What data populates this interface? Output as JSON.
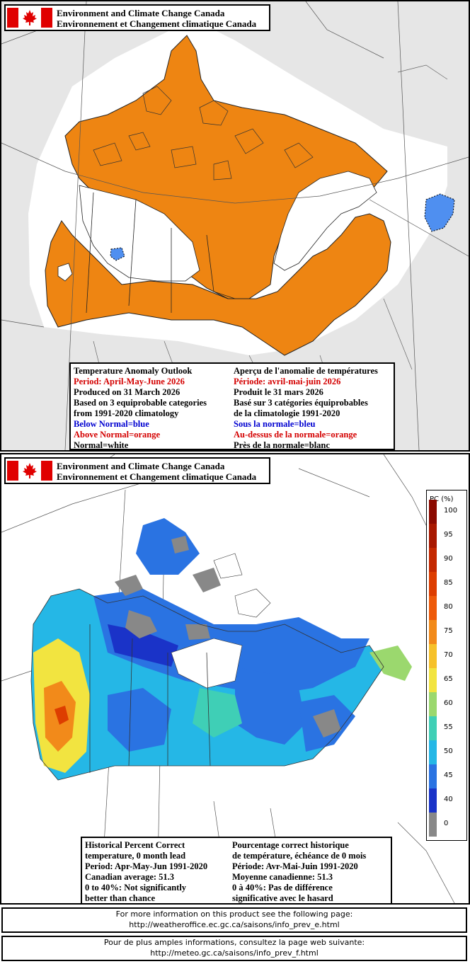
{
  "header": {
    "agency_en": "Environment and Climate Change Canada",
    "agency_fr": "Environnement et Changement climatique Canada"
  },
  "outlook_map": {
    "legend_en": [
      {
        "text": "Temperature Anomaly Outlook",
        "color": "#000000"
      },
      {
        "text": "Period: April-May-June 2026",
        "color": "#d40000"
      },
      {
        "text": "Produced on 31 March 2026",
        "color": "#000000"
      },
      {
        "text": "Based on 3 equiprobable categories",
        "color": "#000000"
      },
      {
        "text": "from 1991-2020 climatology",
        "color": "#000000"
      },
      {
        "text": "Below Normal=blue",
        "color": "#0000d0"
      },
      {
        "text": "Above Normal=orange",
        "color": "#d40000"
      },
      {
        "text": "Normal=white",
        "color": "#000000"
      }
    ],
    "legend_fr": [
      {
        "text": "Aperçu de l'anomalie de températures",
        "color": "#000000"
      },
      {
        "text": "Période: avril-mai-juin 2026",
        "color": "#d40000"
      },
      {
        "text": "Produit le 31 mars 2026",
        "color": "#000000"
      },
      {
        "text": "Basé sur 3 catégories équiprobables",
        "color": "#000000"
      },
      {
        "text": "de la climatologie 1991-2020",
        "color": "#000000"
      },
      {
        "text": "Sous la normale=bleu",
        "color": "#0000d0"
      },
      {
        "text": "Au-dessus de la normale=orange",
        "color": "#d40000"
      },
      {
        "text": "Près de la normale=blanc",
        "color": "#000000"
      }
    ],
    "colors": {
      "above": "#ee8512",
      "below": "#4f8ff0",
      "normal": "#ffffff",
      "outside": "#e8e8e8"
    }
  },
  "skill_map": {
    "legend_en": [
      "Historical Percent Correct",
      "temperature, 0 month lead",
      "Period: Apr-May-Jun 1991-2020",
      "Canadian average: 51.3",
      "0 to 40%: Not significantly",
      "better than chance"
    ],
    "legend_fr": [
      "Pourcentage correct historique",
      "de température, échéance de 0 mois",
      "Période: Avr-Mai-Juin 1991-2020",
      "Moyenne canadienne: 51.3",
      "0 à 40%: Pas de différence",
      "significative avec le hasard"
    ],
    "scale_title": "PC (%)",
    "scale": [
      {
        "label": "100",
        "color": "#8b0a00"
      },
      {
        "label": "95",
        "color": "#a81800"
      },
      {
        "label": "90",
        "color": "#c42800"
      },
      {
        "label": "85",
        "color": "#dd3d00"
      },
      {
        "label": "80",
        "color": "#ee5a0a"
      },
      {
        "label": "75",
        "color": "#f28a1a"
      },
      {
        "label": "70",
        "color": "#f6c12a"
      },
      {
        "label": "65",
        "color": "#f2e440"
      },
      {
        "label": "60",
        "color": "#9bd86e"
      },
      {
        "label": "55",
        "color": "#3fcfb6"
      },
      {
        "label": "50",
        "color": "#25b7e6"
      },
      {
        "label": "45",
        "color": "#2a73e2"
      },
      {
        "label": "40",
        "color": "#1a33c8"
      },
      {
        "label": "0",
        "color": "#888888"
      }
    ]
  },
  "footer": {
    "en_line1": "For more information on this product see the following page:",
    "en_line2": "http://weatheroffice.ec.gc.ca/saisons/info_prev_e.html",
    "fr_line1": "Pour de plus amples informations, consultez la page web suivante:",
    "fr_line2": "http://meteo.gc.ca/saisons/info_prev_f.html"
  }
}
